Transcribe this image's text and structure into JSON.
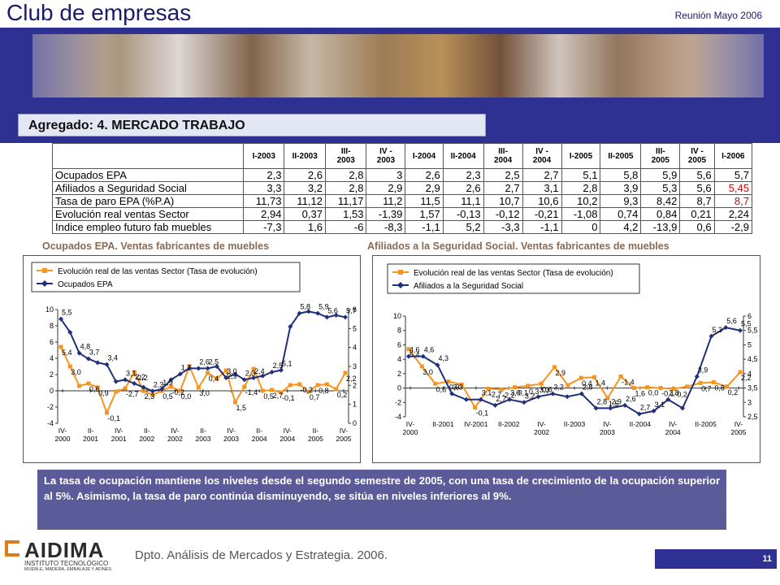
{
  "header": {
    "title": "Club de empresas",
    "meeting": "Reunión Mayo 2006"
  },
  "section": {
    "title": "Agregado: 4. MERCADO TRABAJO"
  },
  "table": {
    "columns": [
      "I-2003",
      "II-2003",
      "III-\n2003",
      "IV -\n2003",
      "I-2004",
      "II-2004",
      "III-\n2004",
      "IV -\n2004",
      "I-2005",
      "II-2005",
      "III-\n2005",
      "IV -\n2005",
      "I-2006"
    ],
    "rows": [
      {
        "label": "Ocupados EPA",
        "values": [
          "2,3",
          "2,6",
          "2,8",
          "3",
          "2,6",
          "2,3",
          "2,5",
          "2,7",
          "5,1",
          "5,8",
          "5,9",
          "5,6",
          "5,7"
        ]
      },
      {
        "label": "Afiliados a Seguridad Social",
        "values": [
          "3,3",
          "3,2",
          "2,8",
          "2,9",
          "2,9",
          "2,6",
          "2,7",
          "3,1",
          "2,8",
          "3,9",
          "5,3",
          "5,6",
          "5,45"
        ]
      },
      {
        "label": "Tasa de paro EPA (%P.A)",
        "values": [
          "11,73",
          "11,12",
          "11,17",
          "11,2",
          "11,5",
          "11,1",
          "10,7",
          "10,6",
          "10,2",
          "9,3",
          "8,42",
          "8,7",
          "8,7"
        ]
      },
      {
        "label": "Evolución real ventas Sector",
        "values": [
          "2,94",
          "0,37",
          "1,53",
          "-1,39",
          "1,57",
          "-0,13",
          "-0,12",
          "-0,21",
          "-1,08",
          "0,74",
          "0,84",
          "0,21",
          "2,24"
        ]
      },
      {
        "label": "Indice empleo futuro fab muebles",
        "values": [
          "-7,3",
          "1,6",
          "-6",
          "-8,3",
          "-1,1",
          "5,2",
          "-3,3",
          "-1,1",
          "0",
          "4,2",
          "-13,9",
          "0,6",
          "-2,9"
        ]
      }
    ],
    "red_value_color": "#e00000"
  },
  "chart_titles": {
    "left": "Ocupados EPA. Ventas fabricantes de muebles",
    "right": "Afiliados a la Seguridad Social. Ventas fabricantes de muebles"
  },
  "chart_data": [
    {
      "type": "line",
      "series": [
        {
          "name": "Evolución real de las ventas Sector (Tasa de evolución)",
          "axis": "left",
          "color": "#f7941d",
          "values": [
            5.4,
            3.0,
            0.6,
            0.9,
            0.4,
            -2.7,
            -0.1,
            0.3,
            2.3,
            0.0,
            -0.5,
            0.0,
            0.5,
            0.0,
            3.0,
            0.4,
            2.2,
            1.5,
            2.5,
            -1.4,
            0.5,
            2.7,
            0.0,
            0.1,
            -0.2,
            0.7,
            0.8,
            -0.1,
            0.7,
            0.8,
            0.2,
            2.2
          ]
        },
        {
          "name": "Ocupados EPA",
          "axis": "right",
          "color": "#1f2f7a",
          "values": [
            5.5,
            4.8,
            3.7,
            3.4,
            3.2,
            3.1,
            2.2,
            2.3,
            2.1,
            1.9,
            1.7,
            1.8,
            2.3,
            2.6,
            2.9,
            2.9,
            2.9,
            3.0,
            2.4,
            2.6,
            2.3,
            2.4,
            2.5,
            2.7,
            2.8,
            5.1,
            5.8,
            5.9,
            5.8,
            5.6,
            5.7,
            5.6
          ]
        }
      ],
      "data_labels_left": [
        "5,4",
        "3,0",
        "0,6",
        "0,9",
        "-0,1",
        "-2,7",
        "-2,2",
        "2,3",
        "0,5",
        "-0,2",
        "0,0",
        "3,0",
        "0,4",
        "2,9",
        "1,5",
        "-1,4",
        "0,5",
        "2,7",
        "-0,1",
        "-0,2",
        "0,7",
        "0,8",
        "0,2",
        "2,2"
      ],
      "data_labels_right": [
        "5,5",
        "4,8",
        "3,7",
        "3,4",
        "3,1",
        "2,2",
        "2,3",
        "1,9",
        "1,7",
        "2,6",
        "2,5",
        "3,0",
        "2,3",
        "2,4",
        "2,5",
        "5,1",
        "5,8",
        "5,9",
        "5,6",
        "5,7"
      ],
      "x_tick_labels": [
        "IV-\n2000",
        "II-\n2001",
        "IV-\n2001",
        "II-\n2002",
        "IV-\n2002",
        "II-\n2003",
        "IV-\n2003",
        "II-\n2004",
        "IV-\n2004",
        "II-\n2005",
        "IV-\n2005"
      ],
      "ylim_left": [
        -4,
        10
      ],
      "yticks_left": [
        "-4",
        "-2",
        "0",
        "2",
        "4",
        "6",
        "8",
        "10"
      ],
      "ylim_right": [
        0,
        6
      ],
      "yticks_right": [
        "0",
        "1",
        "2",
        "3",
        "4",
        "5",
        "6"
      ],
      "legend": "top-left"
    },
    {
      "type": "line",
      "series": [
        {
          "name": "Evolución real de las ventas Sector (Tasa de evolución)",
          "axis": "left",
          "color": "#f7941d",
          "values": [
            5.4,
            3.0,
            0.6,
            0.9,
            0.5,
            -2.7,
            -0.1,
            -0.2,
            0.1,
            0.3,
            0.6,
            2.9,
            0.4,
            1.4,
            1.5,
            -1.4,
            1.6,
            0.0,
            0.1,
            0.0,
            -0.1,
            0.2,
            0.7,
            0.8,
            0.2,
            2.2
          ]
        },
        {
          "name": "Afiliados a la Seguridad Social",
          "axis": "right",
          "color": "#1f2f7a",
          "values": [
            4.6,
            4.6,
            4.3,
            3.3,
            3.1,
            3.1,
            2.9,
            3.1,
            3.0,
            3.2,
            3.3,
            3.2,
            3.3,
            2.8,
            2.8,
            2.9,
            2.6,
            2.7,
            3.1,
            2.8,
            3.9,
            5.3,
            5.6,
            5.5
          ]
        }
      ],
      "data_labels_left": [
        "5,4",
        "3,0",
        "0,6",
        "0,9",
        "-0,1",
        "-2,7",
        "-2,2",
        "-0,1",
        "0,3",
        "0,6",
        "2,9",
        "0,4",
        "1,4",
        "1,5",
        "-1,4",
        "1,6",
        "0,0",
        "-0,1",
        "-0,2",
        "0,7",
        "0,8",
        "0,2",
        "2,2"
      ],
      "data_labels_right": [
        "4,6",
        "4,6",
        "4,3",
        "3,3",
        "3,1",
        "2,7",
        "3,0",
        "3,2",
        "3,3",
        "3,2",
        "2,8",
        "2,8",
        "2,9",
        "2,6",
        "2,7",
        "3,1",
        "2,8",
        "3,9",
        "5,3",
        "5,6",
        "5,5"
      ],
      "x_tick_labels": [
        "IV-\n2000",
        "II-2001",
        "IV-2001",
        "II-2002",
        "IV-\n2002",
        "II-2003",
        "IV-\n2003",
        "II-2004",
        "IV-\n2004",
        "II-2005",
        "IV-\n2005"
      ],
      "ylim_left": [
        -4,
        10
      ],
      "yticks_left": [
        "-4",
        "-2",
        "0",
        "2",
        "4",
        "6",
        "8",
        "10"
      ],
      "ylim_right": [
        2.5,
        6
      ],
      "yticks_right": [
        "2,5",
        "3",
        "3,5",
        "4",
        "4,5",
        "5",
        "5,5",
        "6"
      ],
      "legend": "top-left"
    }
  ],
  "note": {
    "text": "La tasa de ocupación mantiene los niveles desde el segundo semestre de 2005, con una tasa de crecimiento de la ocupación superior al 5%. Asimismo, la tasa de paro continúa disminuyendo, se sitúa en niveles inferiores al 9%."
  },
  "footer": {
    "text": "Dpto. Análisis de Mercados y Estrategia. 2006.",
    "page": "11"
  },
  "logo": {
    "name": "AIDIMA",
    "sub1": "INSTITUTO TECNOLÓGICO",
    "sub2": "MUEBLE, MADERA, EMBALAJE Y AFINES"
  },
  "colors": {
    "brand_blue": "#2e3192",
    "orange": "#f7941d",
    "navy": "#1f2f7a",
    "note_bg": "#5b5b99"
  }
}
